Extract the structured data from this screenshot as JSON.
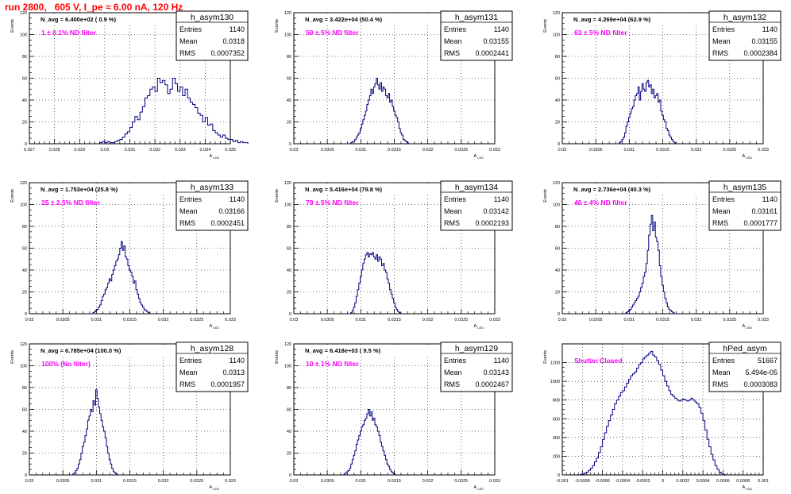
{
  "title": "run 2800,   605 V, I_pe ≈ 6.00 nA, 120 Hz",
  "colors": {
    "hist": "#000080",
    "text_red": "#ff0000",
    "magenta": "#ff00ff",
    "grid": "#000000"
  },
  "axis_ylabel": "Events",
  "axis_xlabel_main": "A",
  "axis_xlabel_sub": "LED",
  "stats_labels": {
    "entries": "Entries",
    "mean": "Mean",
    "rms": "RMS"
  },
  "chart_data": [
    {
      "type": "bar",
      "name": "h_asym130",
      "navg": "N_avg = 6.400e+02 ( 0.9 %)",
      "filter": "1 ± 0.1% ND filter",
      "entries": "1140",
      "mean": "0.0318",
      "rms": "0.0007352",
      "xlim": [
        0.027,
        0.035
      ],
      "ylim": [
        0,
        120
      ],
      "xticks": [
        "0.027",
        "0.028",
        "0.029",
        "0.03",
        "0.031",
        "0.032",
        "0.033",
        "0.034",
        "0.035"
      ],
      "yticks": [
        "0",
        "20",
        "40",
        "60",
        "80",
        "100",
        "120"
      ],
      "bin_start": 0.0298,
      "bin_width": 0.0001,
      "values": [
        1,
        2,
        1,
        2,
        1,
        1,
        2,
        3,
        4,
        6,
        9,
        11,
        15,
        20,
        25,
        22,
        29,
        34,
        42,
        44,
        50,
        52,
        48,
        60,
        56,
        58,
        54,
        46,
        50,
        60,
        55,
        48,
        52,
        44,
        50,
        42,
        38,
        36,
        33,
        28,
        26,
        20,
        24,
        17,
        18,
        12,
        10,
        8,
        6,
        8,
        5,
        4,
        4,
        2,
        3,
        1,
        2,
        1,
        1
      ]
    },
    {
      "type": "bar",
      "name": "h_asym131",
      "navg": "N_avg = 3.422e+04 (50.4 %)",
      "filter": "50 ± 5% ND filter",
      "entries": "1140",
      "mean": "0.03155",
      "rms": "0.0002441",
      "xlim": [
        0.03,
        0.033
      ],
      "ylim": [
        0,
        120
      ],
      "xticks": [
        "0.03",
        "0.0305",
        "0.031",
        "0.0315",
        "0.032",
        "0.0325",
        "0.033"
      ],
      "yticks": [
        "0",
        "20",
        "40",
        "60",
        "80",
        "100",
        "120"
      ],
      "bin_start": 0.03085,
      "bin_width": 2e-05,
      "values": [
        1,
        2,
        2,
        4,
        6,
        8,
        10,
        14,
        18,
        22,
        26,
        30,
        36,
        40,
        44,
        50,
        46,
        52,
        55,
        60,
        54,
        50,
        56,
        48,
        52,
        50,
        44,
        42,
        46,
        38,
        40,
        34,
        30,
        26,
        24,
        20,
        14,
        10,
        8,
        4,
        3,
        2,
        1
      ]
    },
    {
      "type": "bar",
      "name": "h_asym132",
      "navg": "N_avg = 4.269e+04 (62.9 %)",
      "filter": "63 ± 5% ND filter",
      "entries": "1140",
      "mean": "0.03155",
      "rms": "0.0002384",
      "xlim": [
        0.03,
        0.033
      ],
      "ylim": [
        0,
        120
      ],
      "xticks": [
        "0.03",
        "0.0305",
        "0.031",
        "0.0315",
        "0.032",
        "0.0325",
        "0.033"
      ],
      "yticks": [
        "0",
        "20",
        "40",
        "60",
        "80",
        "100",
        "120"
      ],
      "bin_start": 0.03085,
      "bin_width": 2e-05,
      "values": [
        1,
        2,
        4,
        6,
        10,
        16,
        20,
        24,
        28,
        32,
        34,
        40,
        44,
        46,
        52,
        40,
        48,
        55,
        50,
        48,
        56,
        58,
        52,
        54,
        46,
        50,
        42,
        44,
        46,
        38,
        40,
        30,
        26,
        22,
        20,
        14,
        12,
        8,
        6,
        4,
        2,
        1
      ]
    },
    {
      "type": "bar",
      "name": "h_asym133",
      "navg": "N_avg = 1.753e+04 (25.8 %)",
      "filter": "25 ± 2.5% ND filter",
      "entries": "1140",
      "mean": "0.03166",
      "rms": "0.0002451",
      "xlim": [
        0.03,
        0.033
      ],
      "ylim": [
        0,
        120
      ],
      "xticks": [
        "0.03",
        "0.0305",
        "0.031",
        "0.0315",
        "0.032",
        "0.0325",
        "0.033"
      ],
      "yticks": [
        "0",
        "20",
        "40",
        "60",
        "80",
        "100",
        "120"
      ],
      "bin_start": 0.03095,
      "bin_width": 2e-05,
      "values": [
        1,
        2,
        3,
        4,
        6,
        8,
        12,
        16,
        18,
        22,
        24,
        28,
        32,
        30,
        36,
        40,
        44,
        48,
        50,
        54,
        60,
        66,
        58,
        62,
        52,
        50,
        44,
        40,
        38,
        34,
        28,
        30,
        22,
        18,
        14,
        10,
        8,
        6,
        4,
        3,
        2,
        1
      ]
    },
    {
      "type": "bar",
      "name": "h_asym134",
      "navg": "N_avg = 5.416e+04 (79.8 %)",
      "filter": "79 ± 5% ND filter",
      "entries": "1140",
      "mean": "0.03142",
      "rms": "0.0002193",
      "xlim": [
        0.03,
        0.033
      ],
      "ylim": [
        0,
        120
      ],
      "xticks": [
        "0.03",
        "0.0305",
        "0.031",
        "0.0315",
        "0.032",
        "0.0325",
        "0.033"
      ],
      "yticks": [
        "0",
        "20",
        "40",
        "60",
        "80",
        "100",
        "120"
      ],
      "bin_start": 0.03085,
      "bin_width": 2e-05,
      "values": [
        1,
        3,
        6,
        10,
        16,
        22,
        28,
        34,
        40,
        46,
        50,
        54,
        56,
        52,
        55,
        54,
        56,
        52,
        50,
        54,
        48,
        52,
        50,
        44,
        46,
        40,
        38,
        32,
        28,
        22,
        18,
        14,
        10,
        6,
        4,
        2,
        1
      ]
    },
    {
      "type": "bar",
      "name": "h_asym135",
      "navg": "N_avg = 2.736e+04 (40.3 %)",
      "filter": "40 ± 4% ND filter",
      "entries": "1140",
      "mean": "0.03161",
      "rms": "0.0001777",
      "xlim": [
        0.03,
        0.033
      ],
      "ylim": [
        0,
        120
      ],
      "xticks": [
        "0.03",
        "0.0305",
        "0.031",
        "0.0315",
        "0.032",
        "0.0325",
        "0.033"
      ],
      "yticks": [
        "0",
        "20",
        "40",
        "60",
        "80",
        "100",
        "120"
      ],
      "bin_start": 0.03095,
      "bin_width": 2e-05,
      "values": [
        1,
        2,
        3,
        4,
        6,
        8,
        10,
        12,
        14,
        16,
        20,
        24,
        28,
        34,
        38,
        46,
        58,
        72,
        82,
        90,
        76,
        84,
        70,
        66,
        58,
        44,
        34,
        26,
        20,
        14,
        10,
        6,
        4,
        3,
        2,
        1
      ]
    },
    {
      "type": "bar",
      "name": "h_asym128",
      "navg": "N_avg = 6.785e+04 (100.0 %)",
      "filter": "100% (No filter)",
      "entries": "1140",
      "mean": "0.0313",
      "rms": "0.0001957",
      "xlim": [
        0.03,
        0.033
      ],
      "ylim": [
        0,
        120
      ],
      "xticks": [
        "0.03",
        "0.0305",
        "0.031",
        "0.0315",
        "0.032",
        "0.0325",
        "0.033"
      ],
      "yticks": [
        "0",
        "20",
        "40",
        "60",
        "80",
        "100",
        "120"
      ],
      "bin_start": 0.03065,
      "bin_width": 2e-05,
      "values": [
        1,
        2,
        4,
        6,
        10,
        14,
        20,
        26,
        30,
        36,
        42,
        50,
        54,
        60,
        58,
        68,
        64,
        78,
        70,
        62,
        56,
        50,
        44,
        40,
        34,
        26,
        20,
        14,
        10,
        6,
        3,
        2,
        1
      ]
    },
    {
      "type": "bar",
      "name": "h_asym129",
      "navg": "N_avg = 6.418e+03 ( 9.5 %)",
      "filter": "10 ± 1% ND filter",
      "entries": "1140",
      "mean": "0.03143",
      "rms": "0.0002467",
      "xlim": [
        0.03,
        0.033
      ],
      "ylim": [
        0,
        120
      ],
      "xticks": [
        "0.03",
        "0.0305",
        "0.031",
        "0.0315",
        "0.032",
        "0.0325",
        "0.033"
      ],
      "yticks": [
        "0",
        "20",
        "40",
        "60",
        "80",
        "100",
        "120"
      ],
      "bin_start": 0.03075,
      "bin_width": 2e-05,
      "values": [
        1,
        2,
        3,
        4,
        6,
        10,
        14,
        18,
        22,
        28,
        32,
        36,
        40,
        44,
        46,
        50,
        52,
        56,
        60,
        54,
        58,
        50,
        52,
        46,
        44,
        40,
        36,
        30,
        26,
        22,
        18,
        14,
        10,
        8,
        5,
        3,
        2,
        1
      ]
    },
    {
      "type": "bar",
      "name": "hPed_asym",
      "navg": "",
      "filter": "Shutter Closed",
      "entries": "51667",
      "mean": "5.494e-05",
      "rms": "0.0003083",
      "xlim": [
        -0.001,
        0.001
      ],
      "ylim": [
        0,
        1400
      ],
      "xticks": [
        "-0.001",
        "-0.0008",
        "-0.0006",
        "-0.0004",
        "-0.0002",
        "0",
        "0.0002",
        "0.0004",
        "0.0006",
        "0.0008",
        "0.001"
      ],
      "yticks": [
        "0",
        "200",
        "400",
        "600",
        "800",
        "1000",
        "1200"
      ],
      "bin_start": -0.00082,
      "bin_width": 2e-05,
      "values": [
        5,
        10,
        20,
        30,
        50,
        70,
        100,
        140,
        180,
        240,
        300,
        380,
        450,
        520,
        580,
        640,
        700,
        760,
        800,
        840,
        880,
        900,
        940,
        980,
        1020,
        1060,
        1080,
        1100,
        1140,
        1180,
        1200,
        1240,
        1260,
        1280,
        1300,
        1320,
        1280,
        1260,
        1220,
        1180,
        1120,
        1060,
        1000,
        950,
        900,
        860,
        840,
        820,
        800,
        790,
        800,
        810,
        800,
        790,
        800,
        820,
        800,
        780,
        760,
        720,
        660,
        580,
        480,
        380,
        300,
        220,
        160,
        100,
        60,
        30,
        15,
        5
      ]
    }
  ]
}
